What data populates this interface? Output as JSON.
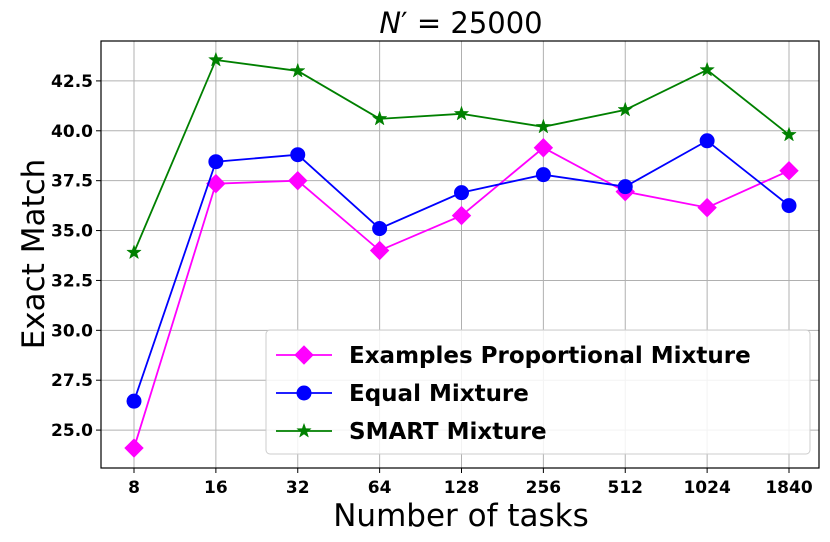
{
  "chart_data": {
    "type": "line",
    "title_symbol": "N",
    "title_prime": "′",
    "title_value": " = 25000",
    "xlabel": "Number of tasks",
    "ylabel": "Exact Match",
    "categories": [
      "8",
      "16",
      "32",
      "64",
      "128",
      "256",
      "512",
      "1024",
      "1840"
    ],
    "y_ticks": [
      25.0,
      27.5,
      30.0,
      32.5,
      35.0,
      37.5,
      40.0,
      42.5
    ],
    "ylim": [
      23.1,
      44.5
    ],
    "grid": true,
    "legend_position": "lower-right",
    "series": [
      {
        "name": "Examples Proportional Mixture",
        "color": "#ff00ff",
        "marker": "diamond",
        "values": [
          24.1,
          37.35,
          37.5,
          34.0,
          35.75,
          39.15,
          36.95,
          36.15,
          38.0
        ]
      },
      {
        "name": "Equal Mixture",
        "color": "#0000ff",
        "marker": "circle",
        "values": [
          26.45,
          38.45,
          38.8,
          35.1,
          36.9,
          37.8,
          37.2,
          39.5,
          36.25
        ]
      },
      {
        "name": "SMART Mixture",
        "color": "#008000",
        "marker": "star",
        "values": [
          33.9,
          43.55,
          43.0,
          40.6,
          40.85,
          40.2,
          41.05,
          43.05,
          39.8
        ]
      }
    ]
  }
}
